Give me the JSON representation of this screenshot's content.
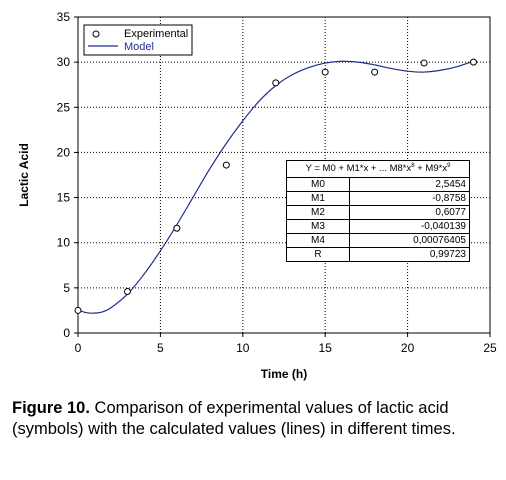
{
  "chart_data": {
    "type": "scatter",
    "xlabel": "Time (h)",
    "ylabel": "Lactic Acid",
    "xlim": [
      0,
      25
    ],
    "ylim": [
      0,
      35
    ],
    "xticks": [
      "0",
      "5",
      "10",
      "15",
      "20",
      "25"
    ],
    "yticks": [
      "0",
      "5",
      "10",
      "15",
      "20",
      "25",
      "30",
      "35"
    ],
    "grid": "dotted",
    "legend": {
      "position": "top-left"
    },
    "series": [
      {
        "name": "Experimental",
        "kind": "markers",
        "x": [
          0,
          3,
          6,
          9,
          12,
          15,
          18,
          21,
          24
        ],
        "y": [
          2.5,
          4.6,
          11.6,
          18.6,
          27.7,
          28.9,
          28.9,
          29.9,
          30.0
        ]
      },
      {
        "name": "Model",
        "kind": "line",
        "color": "#1f2f8f",
        "x": [
          0,
          0.5,
          1,
          1.5,
          2,
          3,
          4,
          5,
          6,
          7,
          8,
          9,
          10,
          11,
          12,
          13,
          14,
          15,
          16,
          17,
          18,
          19,
          20,
          21,
          22,
          23,
          24
        ],
        "y": [
          2.55,
          2.25,
          2.2,
          2.35,
          2.8,
          4.3,
          6.5,
          9.1,
          12.0,
          15.1,
          18.2,
          21.0,
          23.5,
          25.7,
          27.4,
          28.6,
          29.4,
          29.9,
          30.1,
          30.0,
          29.7,
          29.3,
          29.0,
          28.9,
          29.1,
          29.5,
          30.1
        ]
      }
    ],
    "parameter_table": {
      "equation": "Y = M0 + M1*x + ... M8*x",
      "equation_exp1": "8",
      "equation_mid": " + M9*x",
      "equation_exp2": "9",
      "rows": [
        {
          "name": "M0",
          "value": "2,5454"
        },
        {
          "name": "M1",
          "value": "-0,8758"
        },
        {
          "name": "M2",
          "value": "0,6077"
        },
        {
          "name": "M3",
          "value": "-0,040139"
        },
        {
          "name": "M4",
          "value": "0,00076405"
        },
        {
          "name": "R",
          "value": "0,99723"
        }
      ]
    }
  },
  "caption": {
    "label": "Figure 10.",
    "text": " Comparison of experimental values of lactic acid (symbols) with the calculated values (lines) in different times."
  }
}
